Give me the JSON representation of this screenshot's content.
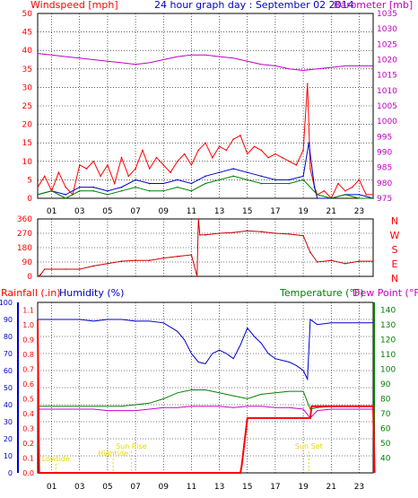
{
  "header": {
    "left": "Windspeed [mph]",
    "center": "24 hour graph day : September 02 2014",
    "right": "Barometer [mb]"
  },
  "bottom_headers": {
    "rainfall": "Rainfall (.in)",
    "humidity": "Humidity (%)",
    "temperature": "Temperature (°F)",
    "dewpoint": "Dew Point (°F)"
  },
  "colors": {
    "wind_axis": "#ff0000",
    "baro_axis": "#c000c0",
    "humidity": "#0000cc",
    "temperature": "#008000",
    "dewpoint": "#cc00cc",
    "rain": "#ff0000",
    "sun": "#e8d800",
    "grid": "#000000"
  },
  "x_ticks": [
    "01",
    "03",
    "05",
    "07",
    "09",
    "11",
    "13",
    "15",
    "17",
    "19",
    "21",
    "23"
  ],
  "compass_labels": [
    "N",
    "W",
    "S",
    "E",
    "N"
  ],
  "sun_labels": {
    "lowtide": "Lowtide",
    "hightide": "Hightide",
    "sunrise": "Sun Rise",
    "sunset": "Sun Set"
  },
  "chart_data": [
    {
      "type": "line",
      "name": "wind",
      "left_axis": {
        "label": "Windspeed [mph]",
        "ticks": [
          0,
          5,
          10,
          15,
          20,
          25,
          30,
          35,
          40,
          45,
          50
        ],
        "range": [
          0,
          50
        ]
      },
      "right_axis": {
        "label": "Barometer [mb]",
        "ticks": [
          975,
          980,
          985,
          990,
          995,
          1000,
          1005,
          1010,
          1015,
          1020,
          1025,
          1030,
          1035
        ],
        "range": [
          975,
          1035
        ]
      },
      "x_range_hours": [
        0,
        24
      ],
      "series": [
        {
          "key": "barometer",
          "axis": "right",
          "x": [
            0,
            1,
            2,
            3,
            4,
            5,
            6,
            7,
            8,
            9,
            10,
            11,
            12,
            13,
            14,
            15,
            16,
            17,
            18,
            19,
            20,
            21,
            22,
            23,
            24
          ],
          "y": [
            1022,
            1021.5,
            1021,
            1020.5,
            1020,
            1019.5,
            1019,
            1018.5,
            1019,
            1020,
            1021,
            1021.5,
            1021.5,
            1021,
            1020.5,
            1019.5,
            1018.5,
            1018,
            1017,
            1016.5,
            1017,
            1017.5,
            1018,
            1018,
            1018
          ]
        },
        {
          "key": "gust",
          "axis": "left",
          "x": [
            0,
            0.5,
            1,
            1.5,
            2,
            2.5,
            3,
            3.5,
            4,
            4.5,
            5,
            5.5,
            6,
            6.5,
            7,
            7.5,
            8,
            8.5,
            9,
            9.5,
            10,
            10.5,
            11,
            11.5,
            12,
            12.5,
            13,
            13.5,
            14,
            14.5,
            15,
            15.5,
            16,
            16.5,
            17,
            17.5,
            18,
            18.5,
            19,
            19.3,
            19.5,
            19.8,
            20,
            20.5,
            21,
            21.5,
            22,
            22.5,
            23,
            23.5,
            24
          ],
          "y": [
            3,
            6,
            2,
            7,
            3,
            1,
            9,
            8,
            10,
            6,
            9,
            4,
            11,
            6,
            8,
            13,
            8,
            11,
            9,
            7,
            10,
            12,
            9,
            13,
            15,
            11,
            14,
            13,
            16,
            17,
            12,
            14,
            13,
            11,
            12,
            11,
            10,
            9,
            13,
            31,
            8,
            3,
            1,
            2,
            0,
            4,
            2,
            3,
            5,
            1,
            1
          ]
        },
        {
          "key": "wind_avg",
          "axis": "left",
          "x": [
            0,
            1,
            2,
            3,
            4,
            5,
            6,
            7,
            8,
            9,
            10,
            11,
            12,
            13,
            14,
            15,
            16,
            17,
            18,
            19,
            19.4,
            19.8,
            20,
            21,
            22,
            23,
            24
          ],
          "y": [
            1,
            2,
            1,
            3,
            3,
            2,
            3,
            5,
            4,
            4,
            5,
            4,
            6,
            7,
            8,
            7,
            6,
            5,
            5,
            6,
            15,
            3,
            0,
            0,
            1,
            1,
            0
          ]
        },
        {
          "key": "wind_dir_avg",
          "axis": "left",
          "x": [
            0,
            1,
            2,
            3,
            4,
            5,
            6,
            7,
            8,
            9,
            10,
            11,
            12,
            13,
            14,
            15,
            16,
            17,
            18,
            19,
            20,
            21,
            22,
            23,
            24
          ],
          "y": [
            1,
            2,
            0,
            2,
            2,
            1,
            2,
            3,
            2,
            2,
            3,
            2,
            4,
            5,
            6,
            5,
            4,
            4,
            4,
            5,
            1,
            0,
            1,
            0,
            0
          ]
        }
      ]
    },
    {
      "type": "line",
      "name": "wind-direction",
      "left_axis": {
        "label": "",
        "ticks": [
          0,
          90,
          180,
          270,
          360
        ],
        "range": [
          0,
          360
        ]
      },
      "right_axis_labels": [
        "N",
        "W",
        "S",
        "E",
        "N"
      ],
      "x_range_hours": [
        0,
        24
      ],
      "series": [
        {
          "key": "direction",
          "x": [
            0,
            0.2,
            0.5,
            1,
            2,
            3,
            4,
            5,
            6,
            7,
            8,
            9,
            10,
            11,
            11.4,
            11.5,
            11.6,
            12,
            13,
            14,
            15,
            16,
            17,
            18,
            19,
            19.5,
            20,
            21,
            22,
            23,
            24
          ],
          "y": [
            0,
            10,
            45,
            45,
            45,
            45,
            65,
            80,
            95,
            100,
            100,
            115,
            125,
            135,
            0,
            360,
            260,
            260,
            270,
            275,
            285,
            280,
            270,
            265,
            255,
            150,
            90,
            100,
            80,
            95,
            95
          ]
        }
      ]
    },
    {
      "type": "line",
      "name": "rain-humidity-temperature",
      "left_axis": {
        "label": "Humidity (%)",
        "ticks": [
          0,
          10,
          20,
          30,
          40,
          50,
          60,
          70,
          80,
          90,
          100
        ],
        "range": [
          0,
          100
        ]
      },
      "rain_axis": {
        "label": "Rainfall (.in)",
        "ticks": [
          0,
          0.1,
          0.2,
          0.3,
          0.4,
          0.5,
          0.6,
          0.7,
          0.8,
          0.9,
          1.0,
          1.1
        ],
        "range": [
          0,
          1.15
        ]
      },
      "right_axis": {
        "label": "Temperature (°F)",
        "ticks": [
          40,
          50,
          60,
          70,
          80,
          90,
          100,
          110,
          120,
          130,
          140
        ],
        "range": [
          30,
          145
        ]
      },
      "x_range_hours": [
        0,
        24
      ],
      "series": [
        {
          "key": "humidity",
          "axis": "left",
          "x": [
            0,
            1,
            2,
            3,
            4,
            5,
            6,
            7,
            8,
            9,
            10,
            10.5,
            11,
            11.5,
            12,
            12.5,
            13,
            13.5,
            14,
            14.5,
            15,
            15.5,
            16,
            16.5,
            17,
            17.5,
            18,
            18.5,
            19,
            19.3,
            19.5,
            20,
            21,
            22,
            23,
            24
          ],
          "y": [
            90,
            90,
            90,
            90,
            89,
            90,
            90,
            89,
            89,
            88,
            83,
            78,
            70,
            65,
            64,
            70,
            72,
            70,
            67,
            75,
            85,
            80,
            76,
            70,
            67,
            66,
            65,
            63,
            60,
            55,
            90,
            87,
            88,
            88,
            88,
            88
          ]
        },
        {
          "key": "temperature",
          "axis": "right",
          "x": [
            0,
            1,
            2,
            3,
            4,
            5,
            6,
            7,
            8,
            9,
            10,
            11,
            12,
            13,
            14,
            15,
            16,
            17,
            18,
            19,
            19.5,
            20,
            21,
            22,
            23,
            24
          ],
          "y": [
            75,
            75,
            75,
            75,
            75,
            75,
            75,
            76,
            77,
            80,
            84,
            86,
            86,
            84,
            82,
            80,
            83,
            84,
            85,
            85,
            73,
            74,
            75,
            75,
            75,
            75
          ]
        },
        {
          "key": "dewpoint",
          "axis": "right",
          "x": [
            0,
            1,
            2,
            3,
            4,
            5,
            6,
            7,
            8,
            9,
            10,
            11,
            12,
            13,
            14,
            15,
            16,
            17,
            18,
            19,
            19.5,
            20,
            21,
            22,
            23,
            24
          ],
          "y": [
            73,
            73,
            73,
            73,
            73,
            72,
            72,
            72,
            73,
            74,
            74,
            75,
            75,
            75,
            74,
            75,
            75,
            74,
            74,
            73,
            67,
            72,
            73,
            73,
            73,
            73
          ]
        },
        {
          "key": "rainfall",
          "axis": "rain",
          "x": [
            0,
            0.1,
            14.5,
            14.6,
            15,
            19.5,
            19.6,
            24,
            24.1
          ],
          "y": [
            1.03,
            0,
            0,
            0.05,
            0.37,
            0.37,
            0.45,
            0.45,
            0
          ]
        }
      ]
    }
  ]
}
